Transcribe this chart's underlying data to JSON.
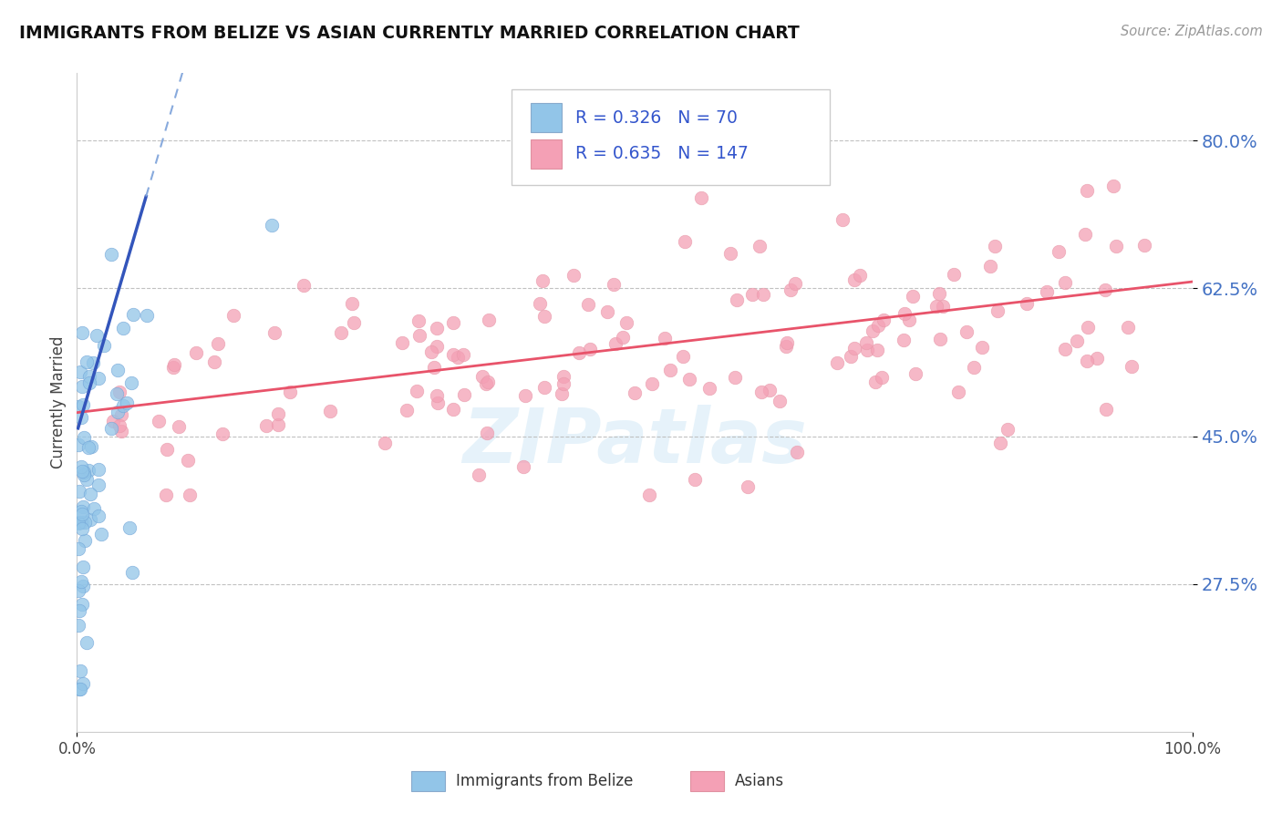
{
  "title": "IMMIGRANTS FROM BELIZE VS ASIAN CURRENTLY MARRIED CORRELATION CHART",
  "source": "Source: ZipAtlas.com",
  "ylabel": "Currently Married",
  "xmin": 0.0,
  "xmax": 1.0,
  "ymin": 0.1,
  "ymax": 0.88,
  "yticks": [
    0.275,
    0.45,
    0.625,
    0.8
  ],
  "ytick_labels": [
    "27.5%",
    "45.0%",
    "62.5%",
    "80.0%"
  ],
  "xticks": [
    0.0,
    1.0
  ],
  "xtick_labels": [
    "0.0%",
    "100.0%"
  ],
  "grid_color": "#bbbbbb",
  "background_color": "#ffffff",
  "watermark": "ZIPatlas",
  "series1": {
    "name": "Immigrants from Belize",
    "color": "#92c5e8",
    "R": 0.326,
    "N": 70,
    "trend_color": "#3355bb",
    "trend_dashed_color": "#88aadd"
  },
  "series2": {
    "name": "Asians",
    "color": "#f4a0b5",
    "R": 0.635,
    "N": 147,
    "trend_color": "#e8536a"
  }
}
